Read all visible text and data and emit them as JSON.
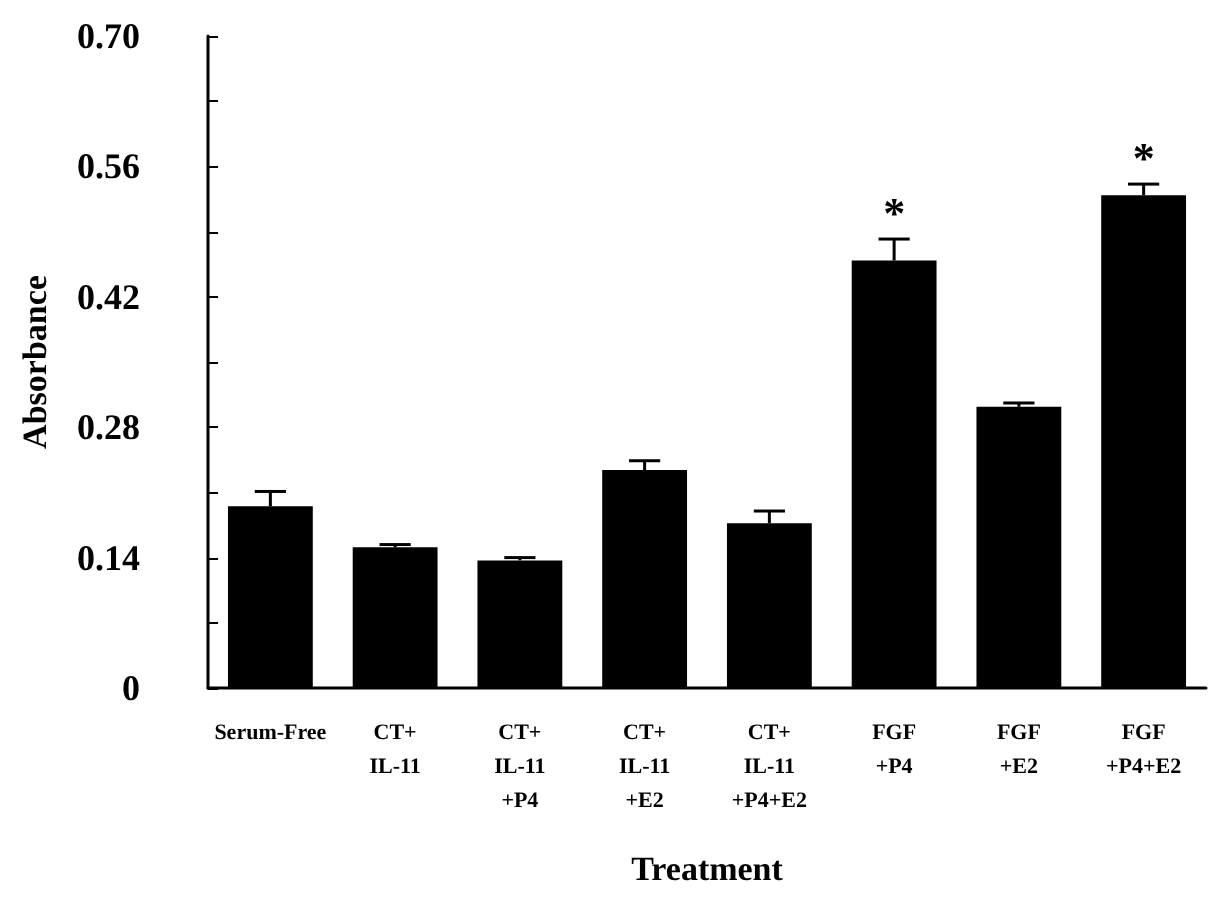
{
  "chart_data": {
    "type": "bar",
    "xlabel": "Treatment",
    "ylabel": "Absorbance",
    "categories": [
      "Serum-Free",
      "CT+\nIL-11",
      "CT+\nIL-11\n+P4",
      "CT+\nIL-11\n+E2",
      "CT+\nIL-11\n+P4+E2",
      "FGF\n+P4",
      "FGF\n+E2",
      "FGF\n+P4+E2"
    ],
    "values": [
      0.195,
      0.151,
      0.137,
      0.234,
      0.177,
      0.459,
      0.302,
      0.529
    ],
    "errors": [
      [
        0.195,
        0.211
      ],
      [
        0.151,
        0.154
      ],
      [
        0.137,
        0.14
      ],
      [
        0.234,
        0.244
      ],
      [
        0.177,
        0.19
      ],
      [
        0.459,
        0.482
      ],
      [
        0.302,
        0.306
      ],
      [
        0.529,
        0.541
      ]
    ],
    "color": "#000000",
    "ylim": [
      0,
      0.7
    ],
    "yticks": [
      0,
      {
        "value": 0.07,
        "label": null
      },
      0.14,
      {
        "value": 0.21,
        "label": null
      },
      0.28,
      {
        "value": 0.35,
        "label": null
      },
      0.42,
      {
        "value": 0.49,
        "label": null
      },
      0.56,
      {
        "value": 0.63,
        "label": null
      },
      {
        "value": 0.7,
        "label": "0.70"
      }
    ],
    "annotations": [
      {
        "text": "*",
        "x": "FGF\n+P4",
        "y": 0.482
      },
      {
        "text": "*",
        "x": "FGF\n+P4+E2",
        "y": 0.541
      }
    ],
    "grid": false
  }
}
